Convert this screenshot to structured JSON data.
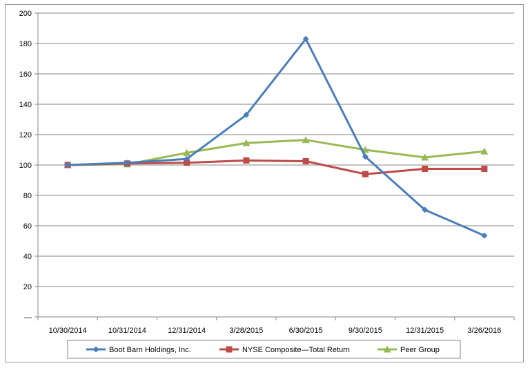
{
  "chart_data": {
    "type": "line",
    "categories": [
      "10/30/2014",
      "10/31/2014",
      "12/31/2014",
      "3/28/2015",
      "6/30/2015",
      "9/30/2015",
      "12/31/2015",
      "3/26/2016"
    ],
    "ylim": [
      0,
      200
    ],
    "y_ticks": [
      0,
      20,
      40,
      60,
      80,
      100,
      120,
      140,
      160,
      180,
      200
    ],
    "y_tick_labels": [
      "—",
      "20",
      "40",
      "60",
      "80",
      "100",
      "120",
      "140",
      "160",
      "180",
      "200"
    ],
    "grid": true,
    "legend_position": "bottom",
    "series": [
      {
        "name": "Boot Barn Holdings, Inc.",
        "color": "#4a7ebb",
        "marker": "diamond",
        "values": [
          100,
          101.5,
          104,
          133,
          183,
          105.5,
          70.5,
          53.5
        ]
      },
      {
        "name": "NYSE Composite—Total Return",
        "color": "#be4b48",
        "marker": "square",
        "values": [
          100,
          101,
          101.5,
          103,
          102.5,
          94,
          97.5,
          97.5
        ]
      },
      {
        "name": "Peer Group",
        "color": "#98b954",
        "marker": "triangle",
        "values": [
          100,
          100.5,
          108,
          114.5,
          116.5,
          110,
          105,
          109
        ]
      }
    ]
  }
}
